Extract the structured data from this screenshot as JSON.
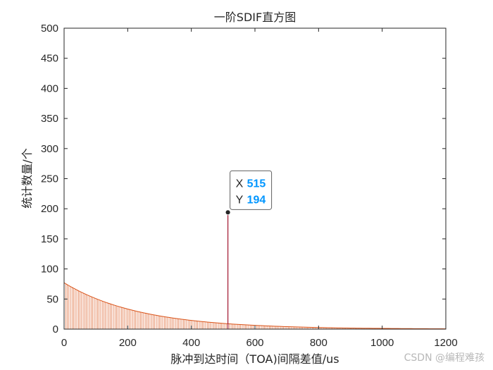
{
  "chart_data": {
    "type": "bar",
    "title": "一阶SDIF直方图",
    "xlabel": "脉冲到达时间（TOA)间隔差值/us",
    "ylabel": "统计数量/个",
    "xlim": [
      0,
      1200
    ],
    "ylim": [
      0,
      500
    ],
    "xticks": [
      "0",
      "200",
      "400",
      "600",
      "800",
      "1000",
      "1200"
    ],
    "yticks": [
      "0",
      "50",
      "100",
      "150",
      "200",
      "250",
      "300",
      "350",
      "400",
      "450",
      "500"
    ],
    "grid": false,
    "series": [
      {
        "type": "decay",
        "color": "#d95319",
        "x": [
          0,
          100,
          200,
          300,
          400,
          500,
          600,
          700,
          800,
          900,
          1000,
          1100,
          1200
        ],
        "y": [
          77,
          50.7,
          33.4,
          22.0,
          14.5,
          9.5,
          6.3,
          4.1,
          2.7,
          1.8,
          1.2,
          0.8,
          0.5
        ]
      },
      {
        "type": "spike",
        "color": "#a2142f",
        "x": [
          515
        ],
        "y": [
          194
        ]
      }
    ],
    "datatip": {
      "x_label": "X",
      "x_value": "515",
      "y_label": "Y",
      "y_value": "194",
      "value_color": "#0096ff"
    }
  },
  "watermark": "CSDN @编程难孩"
}
